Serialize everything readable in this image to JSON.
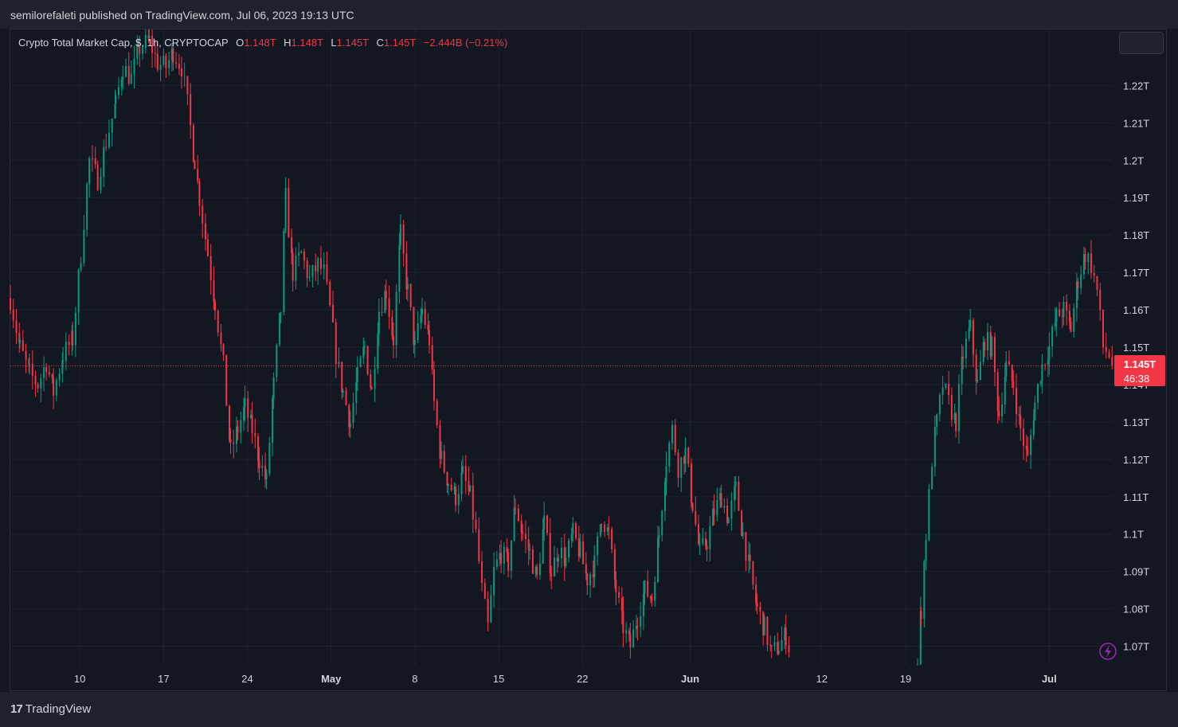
{
  "header": {
    "published_text": "semilorefaleti published on TradingView.com, Jul 06, 2023 19:13 UTC"
  },
  "legend": {
    "symbol": "Crypto Total Market Cap, $, 1h, CRYPTOCAP",
    "open_label": "O",
    "open_value": "1.148T",
    "high_label": "H",
    "high_value": "1.148T",
    "low_label": "L",
    "low_value": "1.145T",
    "close_label": "C",
    "close_value": "1.145T",
    "change_value": "−2.444B (−0.21%)"
  },
  "price_tag": {
    "price": "1.145T",
    "countdown": "46:38"
  },
  "footer": {
    "brand": "TradingView",
    "brand_mark": "17"
  },
  "colors": {
    "background": "#131722",
    "up": "#089981",
    "down": "#f23645",
    "grid": "#1f2330",
    "text": "#d1d4dc"
  },
  "chart_data": {
    "type": "candlestick",
    "title": "Crypto Total Market Cap, $, 1h, CRYPTOCAP",
    "ylim": [
      1.065,
      1.235
    ],
    "y_unit": "T",
    "y_ticks": [
      {
        "value": 1.22,
        "label": "1.22T"
      },
      {
        "value": 1.21,
        "label": "1.21T"
      },
      {
        "value": 1.2,
        "label": "1.2T"
      },
      {
        "value": 1.19,
        "label": "1.19T"
      },
      {
        "value": 1.18,
        "label": "1.18T"
      },
      {
        "value": 1.17,
        "label": "1.17T"
      },
      {
        "value": 1.16,
        "label": "1.16T"
      },
      {
        "value": 1.15,
        "label": "1.15T"
      },
      {
        "value": 1.14,
        "label": "1.14T"
      },
      {
        "value": 1.13,
        "label": "1.13T"
      },
      {
        "value": 1.12,
        "label": "1.12T"
      },
      {
        "value": 1.11,
        "label": "1.11T"
      },
      {
        "value": 1.1,
        "label": "1.1T"
      },
      {
        "value": 1.09,
        "label": "1.09T"
      },
      {
        "value": 1.08,
        "label": "1.08T"
      },
      {
        "value": 1.07,
        "label": "1.07T"
      }
    ],
    "x_ticks": [
      {
        "day": 10,
        "label": "10"
      },
      {
        "day": 17,
        "label": "17"
      },
      {
        "day": 24,
        "label": "24"
      },
      {
        "day": 31,
        "label": "May",
        "bold": true
      },
      {
        "day": 38,
        "label": "8"
      },
      {
        "day": 45,
        "label": "15"
      },
      {
        "day": 52,
        "label": "22"
      },
      {
        "day": 61,
        "label": "Jun",
        "bold": true
      },
      {
        "day": 72,
        "label": "12"
      },
      {
        "day": 79,
        "label": "19"
      },
      {
        "day": 91,
        "label": "Jul",
        "bold": true
      }
    ],
    "x_range_days": [
      4.2,
      96.3
    ],
    "last_price": 1.145,
    "path": [
      [
        4.2,
        1.163
      ],
      [
        5.0,
        1.15
      ],
      [
        5.8,
        1.143
      ],
      [
        6.5,
        1.14
      ],
      [
        7.2,
        1.146
      ],
      [
        7.8,
        1.138
      ],
      [
        8.6,
        1.148
      ],
      [
        9.4,
        1.152
      ],
      [
        10.1,
        1.175
      ],
      [
        10.8,
        1.2
      ],
      [
        11.5,
        1.195
      ],
      [
        12.2,
        1.205
      ],
      [
        13.0,
        1.215
      ],
      [
        13.6,
        1.225
      ],
      [
        14.3,
        1.222
      ],
      [
        15.0,
        1.23
      ],
      [
        15.8,
        1.232
      ],
      [
        16.5,
        1.226
      ],
      [
        17.2,
        1.225
      ],
      [
        17.8,
        1.229
      ],
      [
        18.5,
        1.225
      ],
      [
        19.0,
        1.215
      ],
      [
        19.6,
        1.2
      ],
      [
        20.0,
        1.19
      ],
      [
        20.7,
        1.175
      ],
      [
        21.3,
        1.162
      ],
      [
        22.0,
        1.145
      ],
      [
        22.6,
        1.122
      ],
      [
        23.2,
        1.128
      ],
      [
        23.8,
        1.134
      ],
      [
        24.4,
        1.128
      ],
      [
        25.0,
        1.12
      ],
      [
        25.6,
        1.114
      ],
      [
        26.2,
        1.14
      ],
      [
        26.8,
        1.16
      ],
      [
        27.2,
        1.19
      ],
      [
        27.8,
        1.17
      ],
      [
        28.5,
        1.175
      ],
      [
        29.2,
        1.168
      ],
      [
        29.9,
        1.172
      ],
      [
        30.4,
        1.17
      ],
      [
        30.9,
        1.16
      ],
      [
        31.4,
        1.148
      ],
      [
        32.0,
        1.138
      ],
      [
        32.6,
        1.13
      ],
      [
        33.2,
        1.142
      ],
      [
        33.8,
        1.15
      ],
      [
        34.4,
        1.138
      ],
      [
        35.0,
        1.16
      ],
      [
        35.6,
        1.165
      ],
      [
        36.2,
        1.152
      ],
      [
        36.8,
        1.18
      ],
      [
        37.4,
        1.165
      ],
      [
        38.0,
        1.15
      ],
      [
        38.6,
        1.16
      ],
      [
        39.2,
        1.152
      ],
      [
        39.6,
        1.135
      ],
      [
        40.2,
        1.12
      ],
      [
        40.8,
        1.114
      ],
      [
        41.4,
        1.11
      ],
      [
        42.0,
        1.116
      ],
      [
        42.6,
        1.11
      ],
      [
        43.1,
        1.1
      ],
      [
        43.6,
        1.085
      ],
      [
        44.1,
        1.075
      ],
      [
        44.6,
        1.09
      ],
      [
        45.2,
        1.095
      ],
      [
        45.8,
        1.092
      ],
      [
        46.4,
        1.108
      ],
      [
        47.0,
        1.1
      ],
      [
        47.6,
        1.095
      ],
      [
        48.2,
        1.088
      ],
      [
        48.8,
        1.103
      ],
      [
        49.4,
        1.09
      ],
      [
        50.0,
        1.096
      ],
      [
        50.6,
        1.093
      ],
      [
        51.2,
        1.1
      ],
      [
        51.8,
        1.095
      ],
      [
        52.4,
        1.088
      ],
      [
        53.0,
        1.092
      ],
      [
        53.6,
        1.105
      ],
      [
        54.2,
        1.1
      ],
      [
        54.8,
        1.085
      ],
      [
        55.4,
        1.075
      ],
      [
        56.0,
        1.07
      ],
      [
        56.6,
        1.078
      ],
      [
        57.2,
        1.085
      ],
      [
        57.8,
        1.083
      ],
      [
        58.4,
        1.1
      ],
      [
        59.0,
        1.12
      ],
      [
        59.5,
        1.128
      ],
      [
        60.0,
        1.118
      ],
      [
        60.6,
        1.122
      ],
      [
        61.2,
        1.108
      ],
      [
        61.8,
        1.095
      ],
      [
        62.4,
        1.098
      ],
      [
        63.0,
        1.106
      ],
      [
        63.6,
        1.11
      ],
      [
        64.2,
        1.104
      ],
      [
        64.8,
        1.112
      ],
      [
        65.4,
        1.1
      ],
      [
        66.0,
        1.09
      ],
      [
        66.6,
        1.08
      ],
      [
        67.2,
        1.075
      ],
      [
        67.8,
        1.068
      ],
      [
        68.4,
        1.07
      ],
      [
        69.0,
        1.073
      ],
      [
        69.4,
        1.068
      ]
    ],
    "gap_days": [
      69.4,
      80.0
    ],
    "path2": [
      [
        80.0,
        1.065
      ],
      [
        80.3,
        1.08
      ],
      [
        80.7,
        1.1
      ],
      [
        81.2,
        1.12
      ],
      [
        81.6,
        1.13
      ],
      [
        82.1,
        1.14
      ],
      [
        82.6,
        1.135
      ],
      [
        83.2,
        1.13
      ],
      [
        83.8,
        1.148
      ],
      [
        84.4,
        1.155
      ],
      [
        85.0,
        1.14
      ],
      [
        85.6,
        1.152
      ],
      [
        86.2,
        1.15
      ],
      [
        86.8,
        1.132
      ],
      [
        87.4,
        1.145
      ],
      [
        88.0,
        1.14
      ],
      [
        88.6,
        1.128
      ],
      [
        89.2,
        1.12
      ],
      [
        89.8,
        1.135
      ],
      [
        90.4,
        1.145
      ],
      [
        91.0,
        1.15
      ],
      [
        91.6,
        1.158
      ],
      [
        92.2,
        1.16
      ],
      [
        92.8,
        1.155
      ],
      [
        93.4,
        1.168
      ],
      [
        94.0,
        1.175
      ],
      [
        94.5,
        1.172
      ],
      [
        95.0,
        1.165
      ],
      [
        95.5,
        1.15
      ],
      [
        96.0,
        1.148
      ],
      [
        96.3,
        1.145
      ]
    ]
  }
}
